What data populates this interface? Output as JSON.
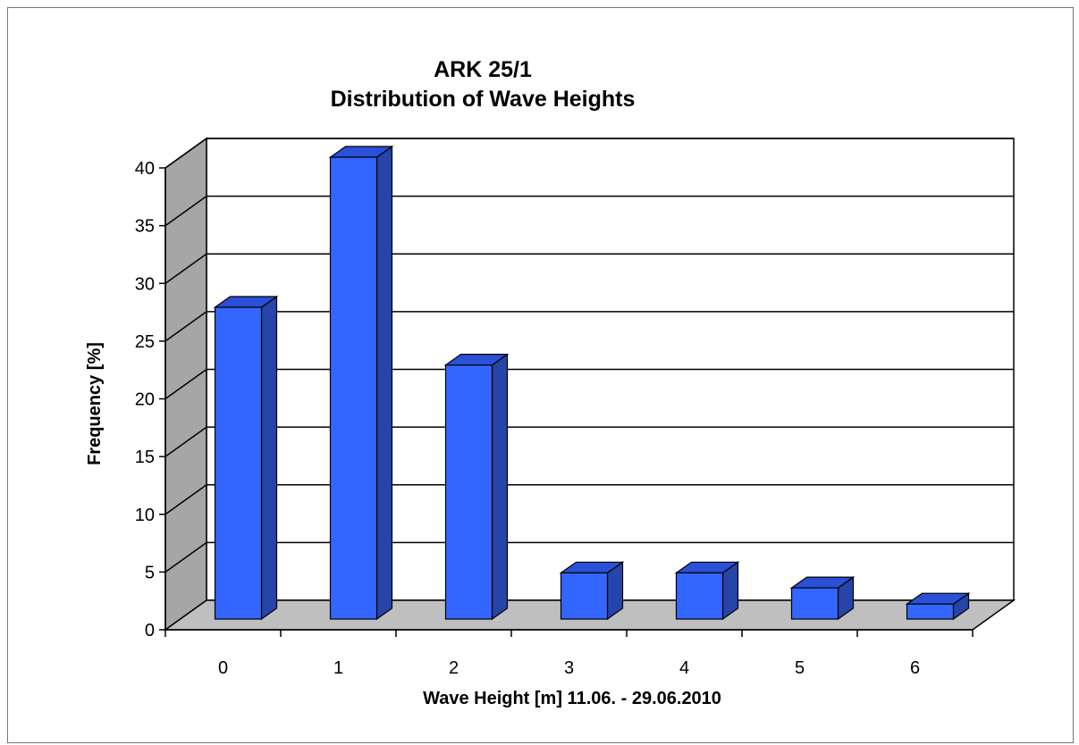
{
  "chart_data": {
    "type": "bar",
    "title_lines": [
      "ARK 25/1",
      "Distribution of Wave Heights"
    ],
    "xlabel": "Wave Height [m] 11.06. - 29.06.2010",
    "ylabel": "Frequency [%]",
    "categories": [
      "0",
      "1",
      "2",
      "3",
      "4",
      "5",
      "6"
    ],
    "values": [
      27,
      40,
      22,
      4,
      4,
      2.7,
      1.3
    ],
    "ylim": [
      0,
      40
    ],
    "yticks": [
      "0",
      "5",
      "10",
      "15",
      "20",
      "25",
      "30",
      "35",
      "40"
    ],
    "grid": true,
    "legend": "none",
    "colors": {
      "bar_front": "#3366FF",
      "bar_side": "#2744A8",
      "bar_top": "#2A50D8",
      "back_wall": "#FFFFFF",
      "side_wall": "#A6A6A6",
      "floor": "#BFBFBF",
      "grid": "#000000"
    }
  }
}
